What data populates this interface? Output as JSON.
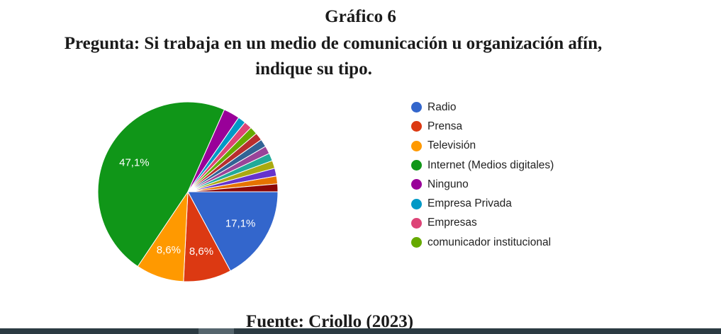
{
  "figure": {
    "title": "Gráfico 6",
    "question_line1": "Pregunta: Si trabaja en un medio de comunicación u organización afín,",
    "question_line2": "indique su tipo.",
    "source": "Fuente: Criollo (2023)"
  },
  "chart_data": {
    "type": "pie",
    "title": "",
    "legend_position": "right",
    "start_direction": "right",
    "direction": "clockwise",
    "categories": [
      "Radio",
      "Prensa",
      "Televisión",
      "Internet (Medios digitales)",
      "Ninguno",
      "Empresa Privada",
      "Empresas",
      "comunicador institucional"
    ],
    "slices": [
      {
        "label": "Radio",
        "value": 17.1,
        "display": "17,1%",
        "color": "#3366cc",
        "in_legend": true
      },
      {
        "label": "Prensa",
        "value": 8.6,
        "display": "8,6%",
        "color": "#dc3912",
        "in_legend": true
      },
      {
        "label": "Televisión",
        "value": 8.6,
        "display": "8,6%",
        "color": "#ff9900",
        "in_legend": true
      },
      {
        "label": "Internet (Medios digitales)",
        "value": 47.1,
        "display": "47,1%",
        "color": "#109618",
        "in_legend": true
      },
      {
        "label": "Ninguno",
        "value": 2.9,
        "display": "",
        "color": "#990099",
        "in_legend": true
      },
      {
        "label": "Empresa Privada",
        "value": 1.4,
        "display": "",
        "color": "#0099c6",
        "in_legend": true
      },
      {
        "label": "Empresas",
        "value": 1.4,
        "display": "",
        "color": "#dd4477",
        "in_legend": true
      },
      {
        "label": "comunicador institucional",
        "value": 1.4,
        "display": "",
        "color": "#66aa00",
        "in_legend": true
      },
      {
        "label": "",
        "value": 1.4,
        "display": "",
        "color": "#b82e2e",
        "in_legend": false
      },
      {
        "label": "",
        "value": 1.4,
        "display": "",
        "color": "#316395",
        "in_legend": false
      },
      {
        "label": "",
        "value": 1.4,
        "display": "",
        "color": "#994499",
        "in_legend": false
      },
      {
        "label": "",
        "value": 1.4,
        "display": "",
        "color": "#22aa99",
        "in_legend": false
      },
      {
        "label": "",
        "value": 1.4,
        "display": "",
        "color": "#aaaa11",
        "in_legend": false
      },
      {
        "label": "",
        "value": 1.4,
        "display": "",
        "color": "#6633cc",
        "in_legend": false
      },
      {
        "label": "",
        "value": 1.4,
        "display": "",
        "color": "#e67300",
        "in_legend": false
      },
      {
        "label": "",
        "value": 1.4,
        "display": "",
        "color": "#8b0707",
        "in_legend": false
      }
    ]
  }
}
